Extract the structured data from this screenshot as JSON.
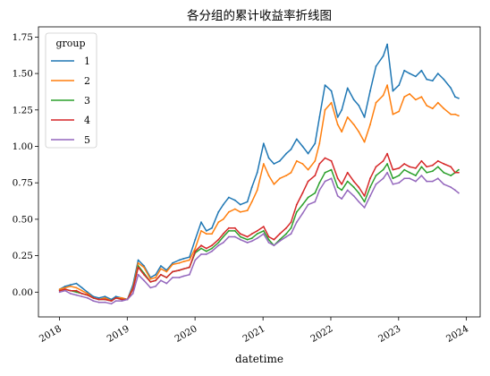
{
  "chart_data": {
    "type": "line",
    "title": "各分组的累计收益率折线图",
    "xlabel": "datetime",
    "ylabel": "",
    "xlim": [
      "2017-09-10",
      "2024-03-15"
    ],
    "ylim": [
      -0.17,
      1.82
    ],
    "x_ticks": [
      "2018",
      "2019",
      "2020",
      "2021",
      "2022",
      "2023",
      "2024"
    ],
    "y_ticks": [
      "0.00",
      "0.25",
      "0.50",
      "0.75",
      "1.00",
      "1.25",
      "1.50",
      "1.75"
    ],
    "grid": false,
    "legend": {
      "title": "group",
      "placement": "top-left"
    },
    "x": [
      "2018-01-02",
      "2018-02-01",
      "2018-03-01",
      "2018-04-02",
      "2018-05-02",
      "2018-06-01",
      "2018-07-02",
      "2018-08-01",
      "2018-09-03",
      "2018-10-08",
      "2018-11-01",
      "2018-12-03",
      "2019-01-02",
      "2019-02-01",
      "2019-03-01",
      "2019-04-01",
      "2019-05-06",
      "2019-06-03",
      "2019-07-01",
      "2019-08-01",
      "2019-09-02",
      "2019-10-08",
      "2019-11-01",
      "2019-12-02",
      "2020-01-02",
      "2020-02-03",
      "2020-03-02",
      "2020-04-01",
      "2020-05-06",
      "2020-06-01",
      "2020-07-01",
      "2020-08-03",
      "2020-09-01",
      "2020-10-09",
      "2020-11-02",
      "2020-12-01",
      "2021-01-04",
      "2021-02-01",
      "2021-03-01",
      "2021-04-01",
      "2021-05-06",
      "2021-06-01",
      "2021-07-01",
      "2021-08-02",
      "2021-09-01",
      "2021-10-08",
      "2021-11-01",
      "2021-12-01",
      "2022-01-04",
      "2022-02-07",
      "2022-03-01",
      "2022-04-01",
      "2022-05-05",
      "2022-06-01",
      "2022-07-01",
      "2022-08-01",
      "2022-09-01",
      "2022-10-10",
      "2022-11-01",
      "2022-12-01",
      "2023-01-03",
      "2023-02-01",
      "2023-03-01",
      "2023-04-03",
      "2023-05-04",
      "2023-06-01",
      "2023-07-03",
      "2023-08-01",
      "2023-09-01",
      "2023-10-09",
      "2023-11-01",
      "2023-11-20"
    ],
    "series": [
      {
        "name": "1",
        "color": "#1f77b4",
        "values": [
          0.02,
          0.04,
          0.05,
          0.06,
          0.03,
          0.0,
          -0.03,
          -0.04,
          -0.03,
          -0.05,
          -0.03,
          -0.04,
          -0.05,
          0.05,
          0.22,
          0.18,
          0.1,
          0.12,
          0.18,
          0.15,
          0.2,
          0.22,
          0.23,
          0.24,
          0.36,
          0.48,
          0.42,
          0.44,
          0.55,
          0.6,
          0.65,
          0.63,
          0.6,
          0.62,
          0.72,
          0.82,
          1.02,
          0.92,
          0.88,
          0.9,
          0.95,
          0.98,
          1.05,
          1.0,
          0.95,
          1.02,
          1.2,
          1.42,
          1.38,
          1.2,
          1.25,
          1.4,
          1.32,
          1.28,
          1.2,
          1.38,
          1.55,
          1.62,
          1.7,
          1.38,
          1.42,
          1.52,
          1.5,
          1.48,
          1.52,
          1.46,
          1.45,
          1.5,
          1.46,
          1.4,
          1.34,
          1.33
        ]
      },
      {
        "name": "2",
        "color": "#ff7f0e",
        "values": [
          0.02,
          0.03,
          0.04,
          0.03,
          0.01,
          -0.01,
          -0.04,
          -0.05,
          -0.04,
          -0.06,
          -0.04,
          -0.04,
          -0.05,
          0.03,
          0.2,
          0.17,
          0.09,
          0.1,
          0.16,
          0.14,
          0.19,
          0.2,
          0.21,
          0.22,
          0.3,
          0.42,
          0.4,
          0.4,
          0.48,
          0.5,
          0.55,
          0.57,
          0.55,
          0.56,
          0.62,
          0.7,
          0.88,
          0.8,
          0.74,
          0.78,
          0.8,
          0.82,
          0.9,
          0.88,
          0.84,
          0.9,
          1.02,
          1.25,
          1.3,
          1.15,
          1.1,
          1.2,
          1.15,
          1.1,
          1.03,
          1.15,
          1.3,
          1.35,
          1.42,
          1.22,
          1.24,
          1.34,
          1.36,
          1.32,
          1.34,
          1.28,
          1.26,
          1.3,
          1.26,
          1.22,
          1.22,
          1.21
        ]
      },
      {
        "name": "3",
        "color": "#2ca02c",
        "values": [
          0.01,
          0.02,
          0.01,
          0.0,
          -0.01,
          -0.02,
          -0.04,
          -0.05,
          -0.05,
          -0.06,
          -0.04,
          -0.05,
          -0.05,
          0.02,
          0.18,
          0.13,
          0.07,
          0.08,
          0.12,
          0.1,
          0.14,
          0.15,
          0.16,
          0.17,
          0.27,
          0.3,
          0.28,
          0.3,
          0.34,
          0.38,
          0.42,
          0.42,
          0.38,
          0.36,
          0.37,
          0.4,
          0.42,
          0.36,
          0.32,
          0.36,
          0.4,
          0.44,
          0.55,
          0.6,
          0.65,
          0.68,
          0.75,
          0.82,
          0.84,
          0.72,
          0.7,
          0.76,
          0.72,
          0.68,
          0.62,
          0.72,
          0.8,
          0.84,
          0.88,
          0.78,
          0.8,
          0.84,
          0.82,
          0.8,
          0.86,
          0.82,
          0.83,
          0.86,
          0.82,
          0.8,
          0.82,
          0.84
        ]
      },
      {
        "name": "4",
        "color": "#d62728",
        "values": [
          0.01,
          0.02,
          0.01,
          0.01,
          -0.01,
          -0.02,
          -0.04,
          -0.05,
          -0.05,
          -0.06,
          -0.04,
          -0.05,
          -0.05,
          0.02,
          0.17,
          0.12,
          0.07,
          0.08,
          0.12,
          0.1,
          0.14,
          0.15,
          0.16,
          0.17,
          0.28,
          0.32,
          0.3,
          0.32,
          0.36,
          0.4,
          0.44,
          0.44,
          0.4,
          0.38,
          0.4,
          0.42,
          0.45,
          0.38,
          0.36,
          0.4,
          0.44,
          0.48,
          0.6,
          0.68,
          0.76,
          0.8,
          0.88,
          0.92,
          0.9,
          0.78,
          0.74,
          0.82,
          0.76,
          0.72,
          0.66,
          0.78,
          0.86,
          0.9,
          0.95,
          0.84,
          0.85,
          0.88,
          0.86,
          0.85,
          0.9,
          0.86,
          0.87,
          0.9,
          0.88,
          0.86,
          0.82,
          0.82
        ]
      },
      {
        "name": "5",
        "color": "#9467bd",
        "values": [
          0.0,
          0.01,
          -0.01,
          -0.02,
          -0.03,
          -0.04,
          -0.06,
          -0.07,
          -0.07,
          -0.08,
          -0.06,
          -0.06,
          -0.05,
          -0.01,
          0.12,
          0.08,
          0.03,
          0.04,
          0.08,
          0.06,
          0.1,
          0.1,
          0.11,
          0.12,
          0.22,
          0.26,
          0.26,
          0.28,
          0.32,
          0.34,
          0.38,
          0.38,
          0.36,
          0.34,
          0.35,
          0.37,
          0.4,
          0.34,
          0.32,
          0.35,
          0.38,
          0.4,
          0.48,
          0.54,
          0.6,
          0.62,
          0.7,
          0.76,
          0.78,
          0.66,
          0.64,
          0.7,
          0.66,
          0.62,
          0.58,
          0.66,
          0.74,
          0.78,
          0.82,
          0.74,
          0.75,
          0.78,
          0.78,
          0.76,
          0.8,
          0.76,
          0.76,
          0.78,
          0.74,
          0.72,
          0.7,
          0.68
        ]
      }
    ]
  }
}
